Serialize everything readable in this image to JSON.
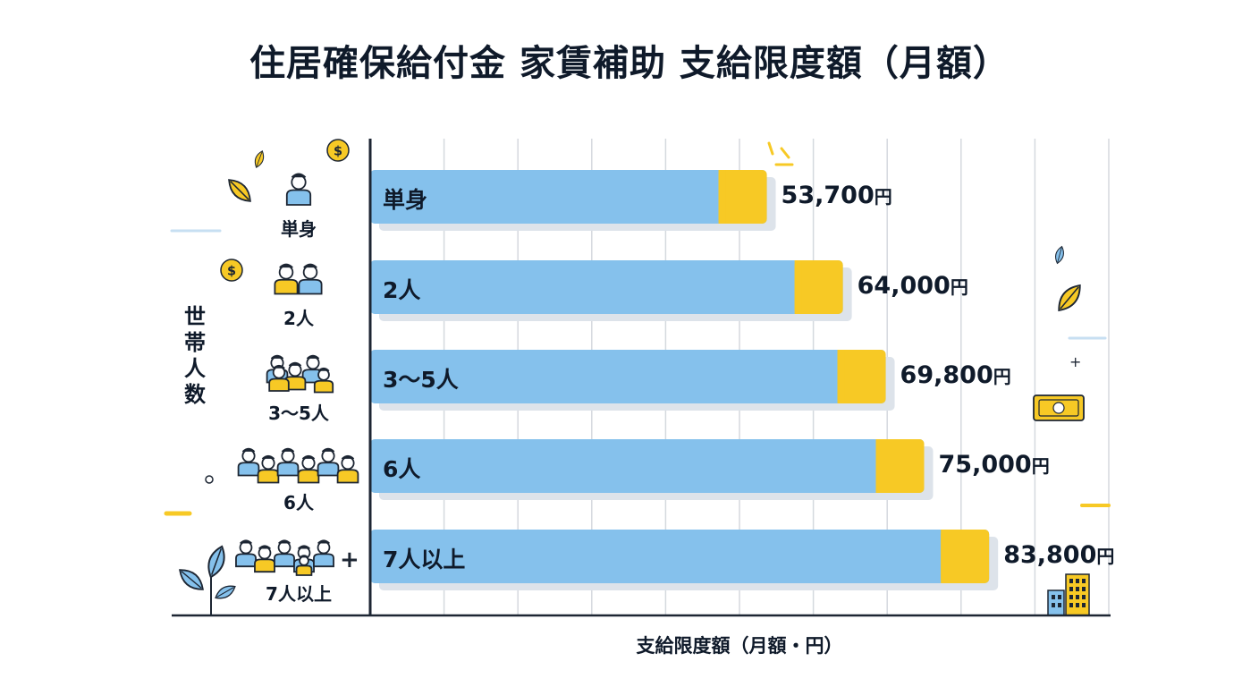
{
  "chart_data": {
    "type": "bar",
    "orientation": "horizontal",
    "title": "住居確保給付金 家賃補助 支給限度額（月額）",
    "ylabel": "世帯人数",
    "xlabel": "支給限度額（月額・円）",
    "categories": [
      "単身",
      "2人",
      "3〜5人",
      "6人",
      "7人以上"
    ],
    "values": [
      53700,
      64000,
      69800,
      75000,
      83800
    ],
    "value_labels": [
      "53,700",
      "64,000",
      "69,800",
      "75,000",
      "83,800"
    ],
    "unit": "円",
    "xlim": [
      0,
      100000
    ],
    "grid": true,
    "colors": {
      "bar": "#85c1ec",
      "accent": "#f7c925",
      "shadow": "#dde3ea",
      "axis": "#1d2633",
      "grid": "#d5d9de"
    }
  }
}
